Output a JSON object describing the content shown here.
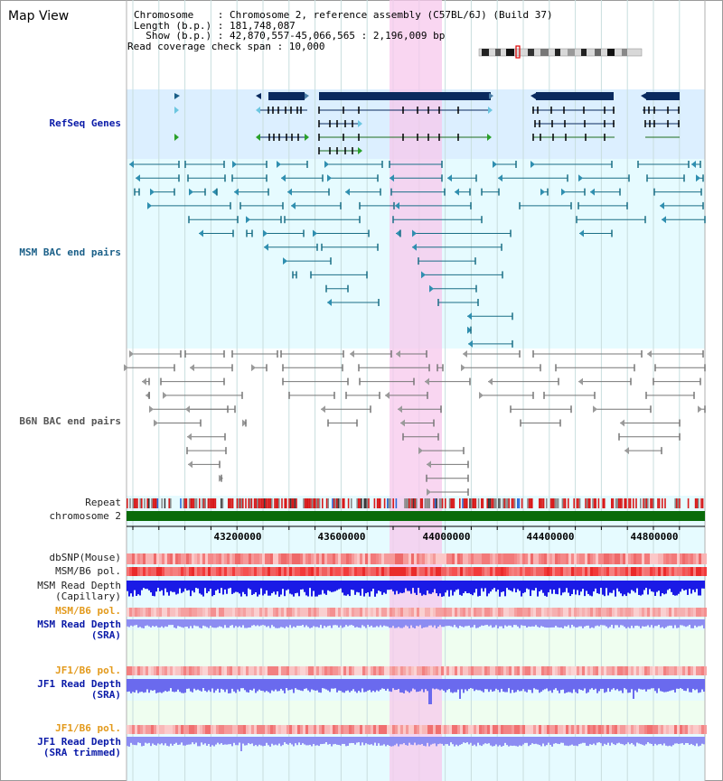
{
  "panel_title": "Map View",
  "header": {
    "chromosome": "Chromosome    : Chromosome 2, reference assembly (C57BL/6J) (Build 37)",
    "length": "Length (b.p.) : 181,748,087",
    "show": "  Show (b.p.) : 42,870,557-45,066,565 : 2,196,009 bp",
    "coverage": "Read coverage check span : 10,000"
  },
  "tracks": {
    "refseq": "RefSeq Genes",
    "msm_bac": "MSM BAC end pairs",
    "b6n_bac": "B6N BAC end pairs",
    "repeat": "Repeat",
    "chromosome": "chromosome 2",
    "dbsnp": "dbSNP(Mouse)",
    "msm_b6_pol_1": "MSM/B6 pol.",
    "msm_depth_cap": "MSM Read Depth\n(Capillary)",
    "msm_b6_pol_2": "MSM/B6 pol.",
    "msm_depth_sra": "MSM Read Depth\n(SRA)",
    "jf1_b6_pol_1": "JF1/B6 pol.",
    "jf1_depth_sra": "JF1 Read Depth\n(SRA)",
    "jf1_b6_pol_2": "JF1/B6 pol.",
    "jf1_depth_trim": "JF1 Read Depth\n(SRA trimmed)"
  },
  "axis": {
    "ticks": [
      "43200000",
      "43600000",
      "44000000",
      "44400000",
      "44800000"
    ]
  },
  "colors": {
    "highlight": "#f7c8ec",
    "refseq_bg": "#dcefff",
    "bac_bg": "#e6fbff",
    "gene": "#0a2a5e",
    "chromosome": "#0a6b0a",
    "depth_blue": "#1a1ae6",
    "depth_light": "#8c8cf2"
  }
}
